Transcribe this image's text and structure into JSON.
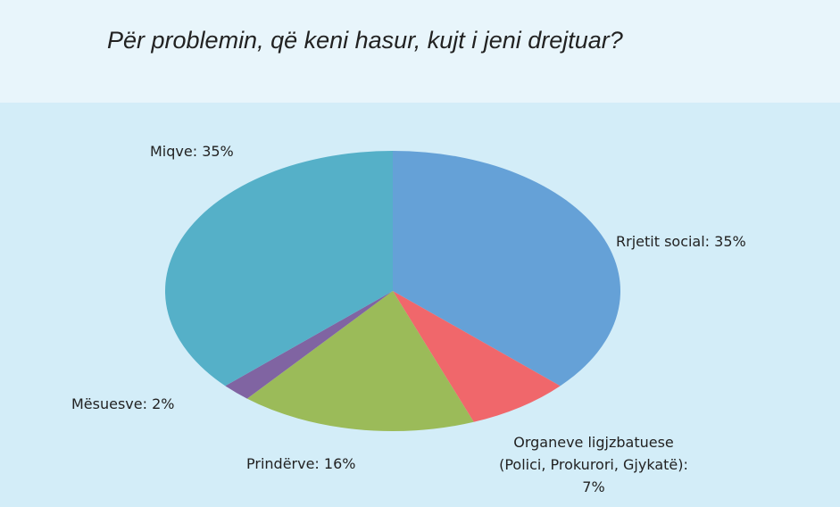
{
  "chart_data": {
    "type": "pie",
    "title": "Për problemin, që keni hasur, kujt i jeni drejtuar?",
    "values": [
      35,
      7,
      16,
      2,
      35
    ],
    "value_labels": [
      "Rrjetit social: 35%",
      "Organeve ligjzbatuese\n(Polici, Prokurori, Gjykatë):\n7%",
      "Prindërve: 16%",
      "Mësuesve: 2%",
      "Miqve: 35%"
    ],
    "colors": [
      "#65a1d7",
      "#f0676b",
      "#9bbb59",
      "#8064a2",
      "#55b0c8"
    ]
  }
}
